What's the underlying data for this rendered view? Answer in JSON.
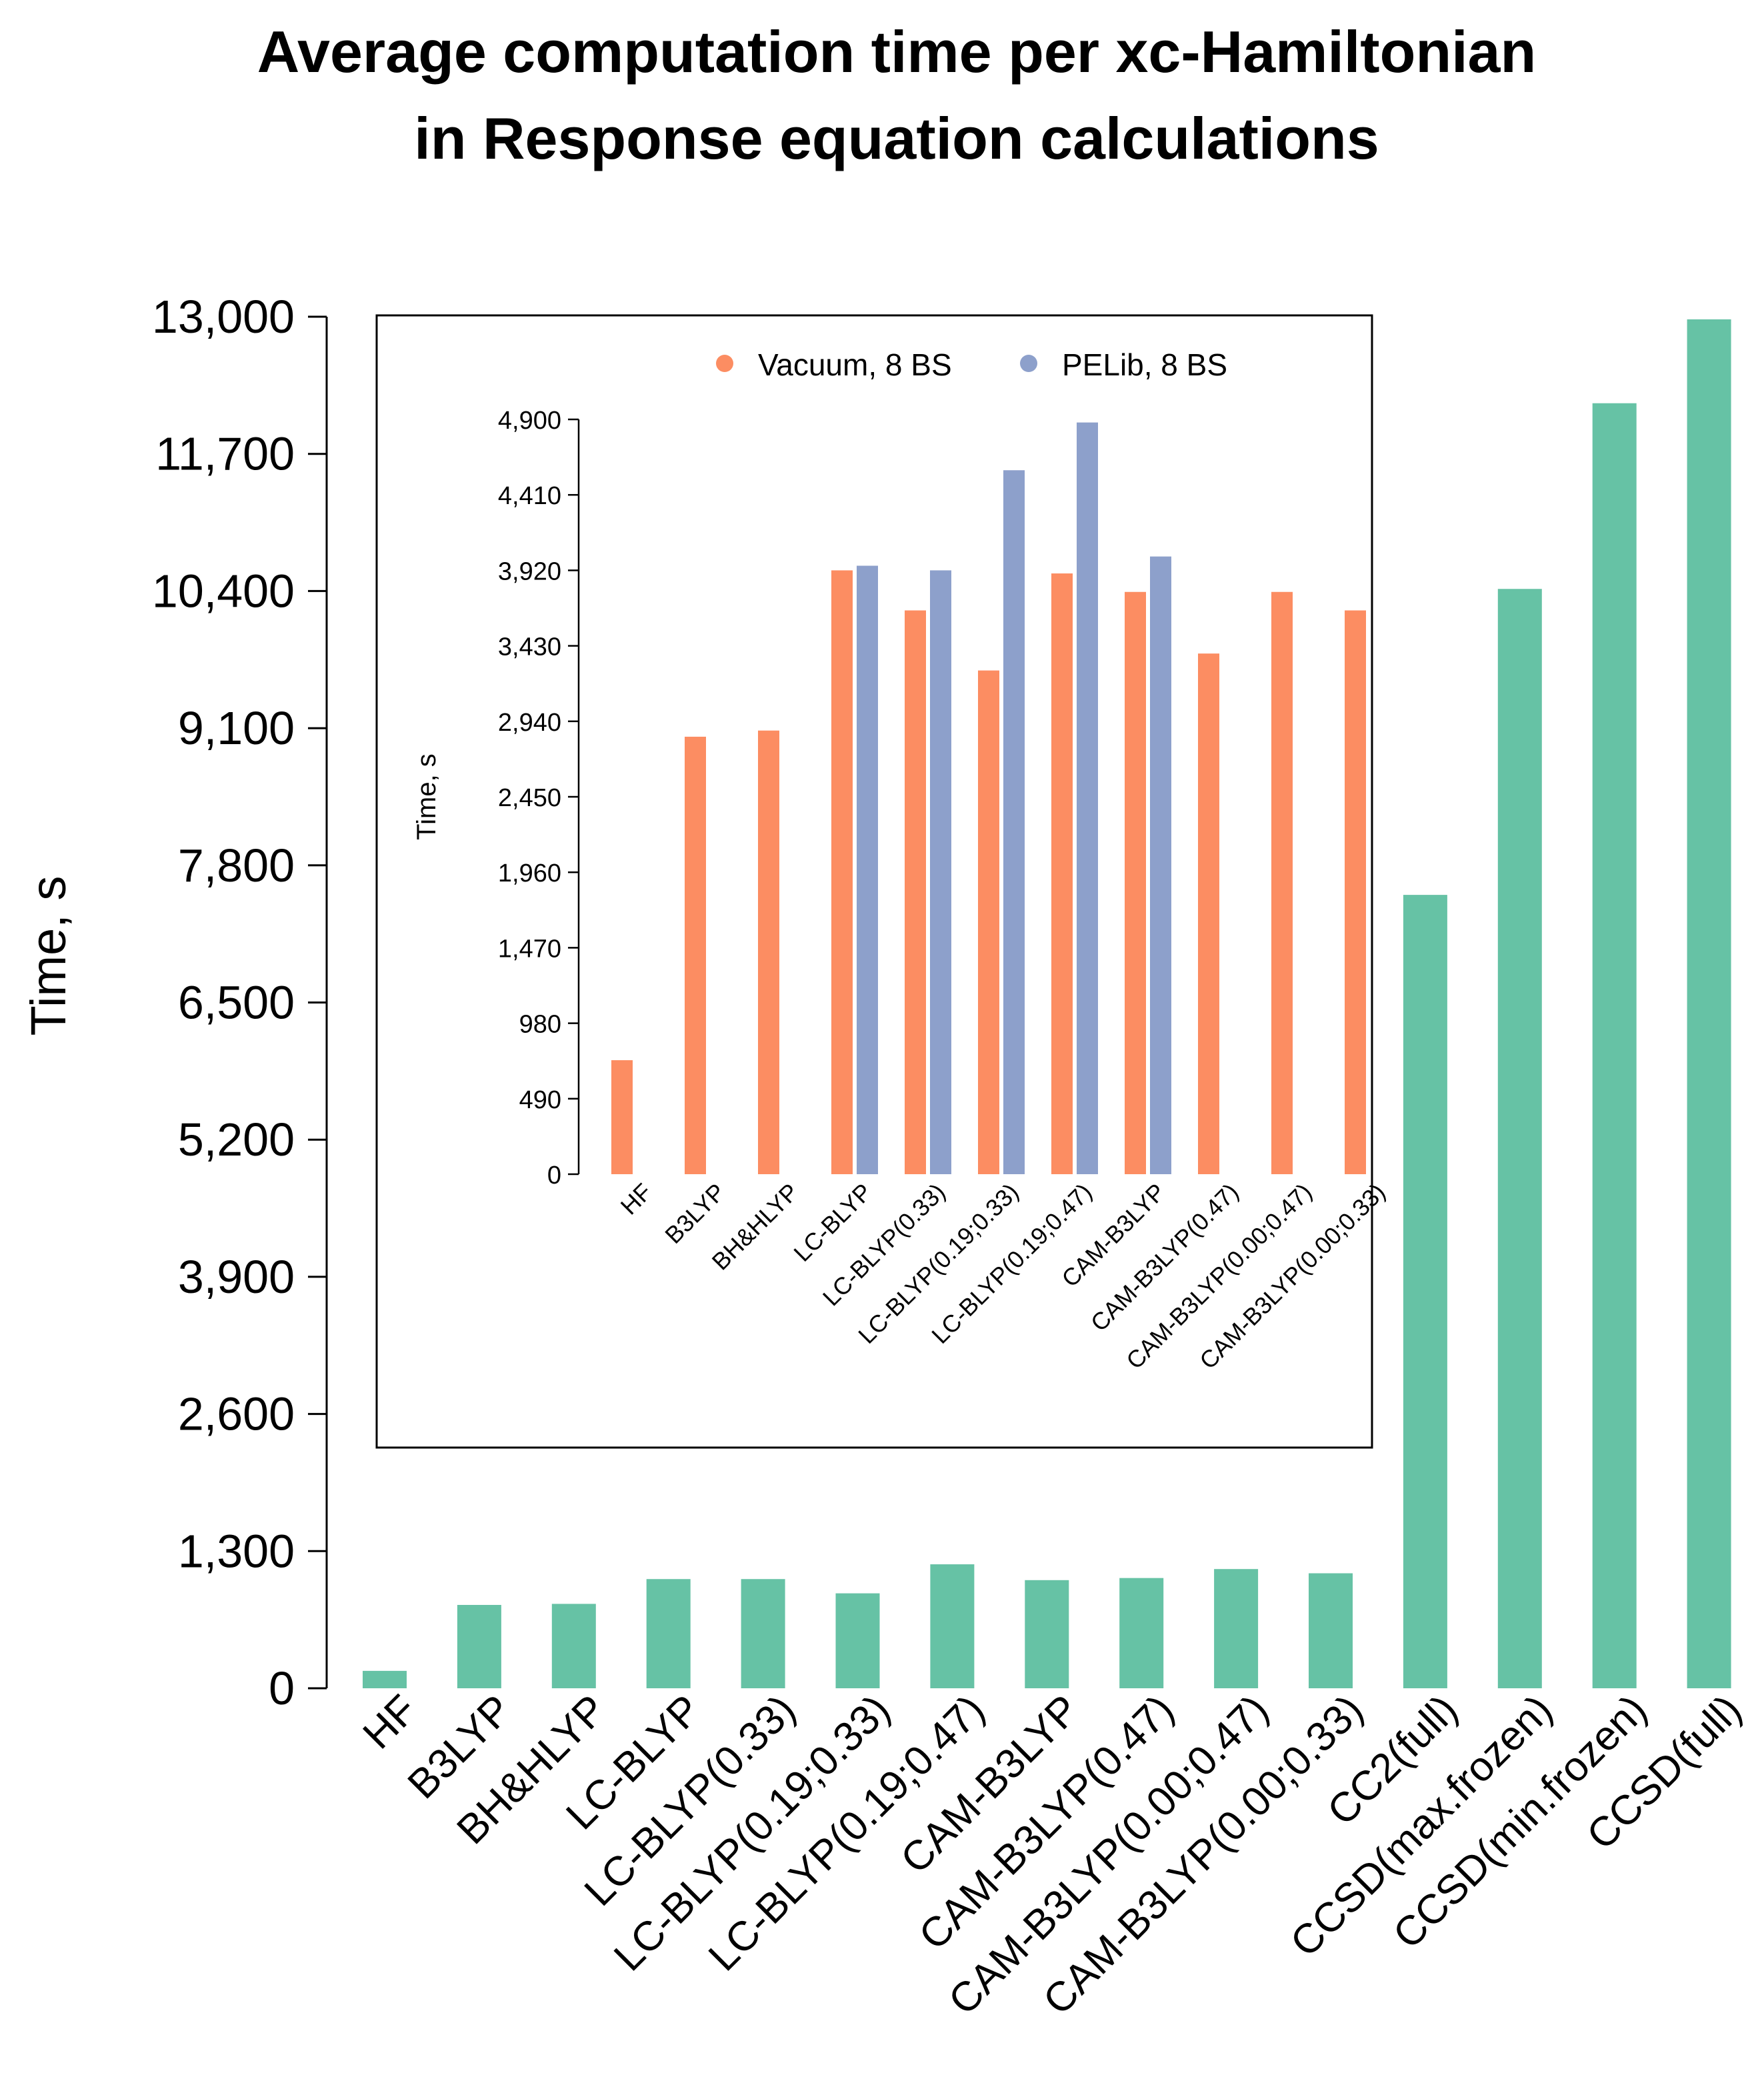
{
  "chart_data": [
    {
      "id": "main",
      "type": "bar",
      "title": "Average computation time per xc-Hamiltonian",
      "subtitle": "in Response equation calculations",
      "xlabel": "",
      "ylabel": "Time, s",
      "ylim": [
        0,
        13000
      ],
      "y_ticks": [
        "0",
        "1,300",
        "2,600",
        "3,900",
        "5,200",
        "6,500",
        "7,800",
        "9,100",
        "10,400",
        "11,700",
        "13,000"
      ],
      "y_tick_values": [
        0,
        1300,
        2600,
        3900,
        5200,
        6500,
        7800,
        9100,
        10400,
        11700,
        13000
      ],
      "categories": [
        "HF",
        "B3LYP",
        "BH&HLYP",
        "LC-BLYP",
        "LC-BLYP(0.33)",
        "LC-BLYP(0.19;0.33)",
        "LC-BLYP(0.19;0.47)",
        "CAM-B3LYP",
        "CAM-B3LYP(0.47)",
        "CAM-B3LYP(0.00;0.47)",
        "CAM-B3LYP(0.00;0.33)",
        "CC2(full)",
        "CCSD(max.frozen)",
        "CCSD(min.frozen)",
        "CCSD(full)"
      ],
      "series": [
        {
          "name": "Time",
          "color": "#66c2a5",
          "values": [
            165,
            790,
            800,
            1035,
            1035,
            900,
            1175,
            1025,
            1045,
            1130,
            1090,
            7520,
            10420,
            12180,
            12975
          ]
        }
      ],
      "grid": false
    },
    {
      "id": "inset",
      "type": "bar",
      "title": "",
      "xlabel": "",
      "ylabel": "Time, s",
      "ylim": [
        0,
        4900
      ],
      "y_ticks": [
        "0",
        "490",
        "980",
        "1,470",
        "1,960",
        "2,450",
        "2,940",
        "3,430",
        "3,920",
        "4,410",
        "4,900"
      ],
      "y_tick_values": [
        0,
        490,
        980,
        1470,
        1960,
        2450,
        2940,
        3430,
        3920,
        4410,
        4900
      ],
      "categories": [
        "HF",
        "B3LYP",
        "BH&HLYP",
        "LC-BLYP",
        "LC-BLYP(0.33)",
        "LC-BLYP(0.19;0.33)",
        "LC-BLYP(0.19;0.47)",
        "CAM-B3LYP",
        "CAM-B3LYP(0.47)",
        "CAM-B3LYP(0.00;0.47)",
        "CAM-B3LYP(0.00;0.33)"
      ],
      "series": [
        {
          "name": "Vacuum, 8 BS",
          "color": "#fc8d62",
          "values": [
            740,
            2840,
            2880,
            3920,
            3660,
            3270,
            3900,
            3780,
            3380,
            3780,
            3660
          ]
        },
        {
          "name": "PELib, 8 BS",
          "color": "#8da0cb",
          "values": [
            null,
            null,
            null,
            3950,
            3920,
            4570,
            4880,
            4010,
            null,
            null,
            null
          ]
        }
      ],
      "legend_position": "top",
      "grid": false
    }
  ]
}
